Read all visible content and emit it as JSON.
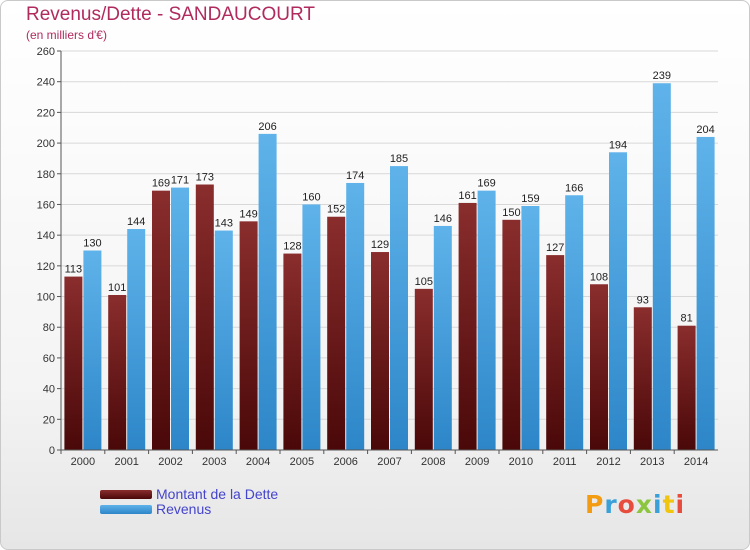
{
  "header": {
    "title": "Revenus/Dette - SANDAUCOURT",
    "subtitle": "(en milliers d'€)"
  },
  "legend": {
    "debt_label": "Montant de la Dette",
    "revenue_label": "Revenus"
  },
  "logo": {
    "text": "Proxiti",
    "colors": [
      "#f39c12",
      "#3aa0d8",
      "#e74c3c",
      "#8cc63f",
      "#3aa0d8",
      "#f1c40f",
      "#e74c3c"
    ]
  },
  "colors": {
    "debt": "#7a2020",
    "revenue": "#4aa3df",
    "title": "#b02a5e",
    "legend_text": "#4444cc"
  },
  "chart_data": {
    "type": "bar",
    "title": "Revenus/Dette - SANDAUCOURT",
    "subtitle": "(en milliers d'€)",
    "categories": [
      "2000",
      "2001",
      "2002",
      "2003",
      "2004",
      "2005",
      "2006",
      "2007",
      "2008",
      "2009",
      "2010",
      "2011",
      "2012",
      "2013",
      "2014"
    ],
    "series": [
      {
        "name": "Montant de la Dette",
        "values": [
          113,
          101,
          169,
          173,
          149,
          128,
          152,
          129,
          105,
          161,
          150,
          127,
          108,
          93,
          81
        ]
      },
      {
        "name": "Revenus",
        "values": [
          130,
          144,
          171,
          143,
          206,
          160,
          174,
          185,
          146,
          169,
          159,
          166,
          194,
          239,
          204
        ]
      }
    ],
    "ylim": [
      0,
      260
    ],
    "yticks": [
      0,
      20,
      40,
      60,
      80,
      100,
      120,
      140,
      160,
      180,
      200,
      220,
      240,
      260
    ],
    "grid": true,
    "legend_position": "bottom-left"
  }
}
